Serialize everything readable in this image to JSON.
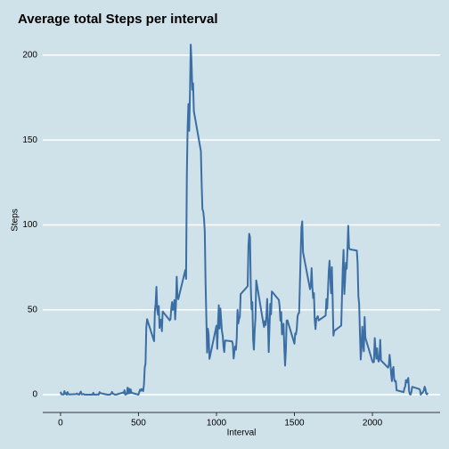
{
  "chart_data": {
    "type": "line",
    "title": "Average total Steps per interval",
    "x_label": "Interval",
    "y_label": "Steps",
    "color": "#3a6ea5",
    "grid": true,
    "xlim": [
      -114,
      2434
    ],
    "ylim": [
      -10.5,
      211.5
    ],
    "xticks": [
      0,
      500,
      1000,
      1500,
      2000
    ],
    "yticks": [
      0,
      50,
      100,
      150,
      200
    ],
    "x": [
      0,
      5,
      10,
      15,
      20,
      25,
      30,
      35,
      40,
      45,
      50,
      55,
      100,
      105,
      110,
      115,
      120,
      125,
      130,
      135,
      140,
      145,
      150,
      155,
      200,
      205,
      210,
      215,
      220,
      225,
      230,
      235,
      240,
      245,
      250,
      255,
      300,
      305,
      310,
      315,
      320,
      325,
      330,
      335,
      340,
      345,
      350,
      355,
      400,
      405,
      410,
      415,
      420,
      425,
      430,
      435,
      440,
      445,
      450,
      455,
      500,
      505,
      510,
      515,
      520,
      525,
      530,
      535,
      540,
      545,
      550,
      555,
      600,
      605,
      610,
      615,
      620,
      625,
      630,
      635,
      640,
      645,
      650,
      655,
      700,
      705,
      710,
      715,
      720,
      725,
      730,
      735,
      740,
      745,
      750,
      755,
      800,
      805,
      810,
      815,
      820,
      825,
      830,
      835,
      840,
      845,
      850,
      855,
      900,
      905,
      910,
      915,
      920,
      925,
      930,
      935,
      940,
      945,
      950,
      955,
      1000,
      1005,
      1010,
      1015,
      1020,
      1025,
      1030,
      1035,
      1040,
      1045,
      1050,
      1055,
      1100,
      1105,
      1110,
      1115,
      1120,
      1125,
      1130,
      1135,
      1140,
      1145,
      1150,
      1155,
      1200,
      1205,
      1210,
      1215,
      1220,
      1225,
      1230,
      1235,
      1240,
      1245,
      1250,
      1255,
      1300,
      1305,
      1310,
      1315,
      1320,
      1325,
      1330,
      1335,
      1340,
      1345,
      1350,
      1355,
      1400,
      1405,
      1410,
      1415,
      1420,
      1425,
      1430,
      1435,
      1440,
      1445,
      1450,
      1455,
      1500,
      1505,
      1510,
      1515,
      1520,
      1525,
      1530,
      1535,
      1540,
      1545,
      1550,
      1555,
      1600,
      1605,
      1610,
      1615,
      1620,
      1625,
      1630,
      1635,
      1640,
      1645,
      1650,
      1655,
      1700,
      1705,
      1710,
      1715,
      1720,
      1725,
      1730,
      1735,
      1740,
      1745,
      1750,
      1755,
      1800,
      1805,
      1810,
      1815,
      1820,
      1825,
      1830,
      1835,
      1840,
      1845,
      1850,
      1855,
      1900,
      1905,
      1910,
      1915,
      1920,
      1925,
      1930,
      1935,
      1940,
      1945,
      1950,
      1955,
      2000,
      2005,
      2010,
      2015,
      2020,
      2025,
      2030,
      2035,
      2040,
      2045,
      2050,
      2055,
      2100,
      2105,
      2110,
      2115,
      2120,
      2125,
      2130,
      2135,
      2140,
      2145,
      2150,
      2155,
      2200,
      2205,
      2210,
      2215,
      2220,
      2225,
      2230,
      2235,
      2240,
      2245,
      2250,
      2255,
      2300,
      2305,
      2310,
      2315,
      2320,
      2325,
      2330,
      2335,
      2340,
      2345,
      2350,
      2355
    ],
    "values": [
      1.7,
      0.3,
      0.1,
      0.2,
      0.1,
      2.1,
      0.5,
      0.9,
      0,
      1.5,
      0.3,
      0.1,
      0.3,
      0.7,
      0.2,
      0.3,
      0,
      1.1,
      1.8,
      0.2,
      0.2,
      0.4,
      0.3,
      0,
      0,
      0,
      1.1,
      0,
      0,
      0.1,
      0,
      0.2,
      0,
      0,
      1.5,
      0.9,
      0,
      0,
      0,
      0,
      0.2,
      0.6,
      1.6,
      0.6,
      0.5,
      0.1,
      0,
      0,
      1.2,
      0.9,
      2.6,
      0,
      0.3,
      0.4,
      4.1,
      0.7,
      3.5,
      0.8,
      3.1,
      1.1,
      0,
      1.6,
      3,
      2.2,
      3.3,
      3,
      2.1,
      6.1,
      16,
      18.3,
      39.5,
      44.5,
      31.5,
      49.3,
      53.8,
      63.5,
      50,
      47.1,
      52.2,
      39.3,
      44,
      44.2,
      37.4,
      49,
      43.8,
      44.4,
      50.5,
      54.5,
      49.9,
      51,
      55.7,
      44.3,
      52.3,
      69.5,
      57.8,
      56.2,
      73.4,
      68.2,
      129.4,
      157.5,
      171.2,
      155.4,
      177.3,
      206.2,
      195.9,
      179.6,
      183.4,
      167,
      143.5,
      124,
      109.1,
      108.1,
      103.7,
      96,
      66.2,
      45.2,
      24.8,
      38.8,
      35,
      21.1,
      40.6,
      27,
      42.4,
      52.7,
      38.9,
      50.8,
      44.3,
      37.4,
      34.7,
      28.3,
      25.1,
      31.9,
      31.4,
      29.7,
      21.3,
      25.5,
      28.4,
      26.5,
      33.4,
      50,
      42,
      44.6,
      46,
      59.2,
      63.9,
      87.7,
      94.8,
      92.8,
      63.4,
      50.2,
      54.5,
      32.4,
      26.5,
      37.7,
      45.1,
      67.3,
      42.3,
      39.9,
      43.3,
      41,
      46.2,
      56.4,
      42.8,
      25.1,
      40,
      53.5,
      47.3,
      60.8,
      55.8,
      52,
      43.6,
      48.7,
      35.5,
      37.5,
      41.8,
      27.5,
      17.1,
      26.1,
      43.6,
      43.8,
      30,
      36.1,
      35.5,
      38.8,
      46,
      47.8,
      48.1,
      65.3,
      82.9,
      98.7,
      102.1,
      84,
      62.1,
      64.1,
      74.5,
      63.2,
      56.9,
      59.8,
      43.9,
      38.6,
      44.7,
      45.5,
      46.2,
      43.7,
      46.6,
      56.3,
      50.7,
      61.2,
      72.7,
      78.9,
      68.9,
      59.7,
      75.1,
      56.5,
      34.8,
      37.5,
      40.7,
      58,
      74.7,
      85.3,
      59.3,
      67.8,
      77.7,
      74.2,
      85.3,
      99.5,
      86.6,
      85.6,
      84.9,
      77.8,
      58,
      53.4,
      36.3,
      20.7,
      27.4,
      40,
      30.2,
      25.5,
      45.7,
      33.5,
      19.6,
      19,
      19.3,
      33.3,
      26.8,
      21.2,
      27.3,
      21.3,
      19.5,
      21.3,
      32.3,
      20.2,
      15.9,
      17.2,
      23.5,
      19.2,
      12.5,
      8,
      14.7,
      16.3,
      8.7,
      7.8,
      8.1,
      2.6,
      1.5,
      3.7,
      4.8,
      8.5,
      7.1,
      8.7,
      9.8,
      2.2,
      0.3,
      0.1,
      1.6,
      4.6,
      3.3,
      2.8,
      0,
      0.8,
      1,
      1.6,
      2.6,
      4.7,
      3.3,
      0.6,
      0.2,
      1.1
    ]
  }
}
